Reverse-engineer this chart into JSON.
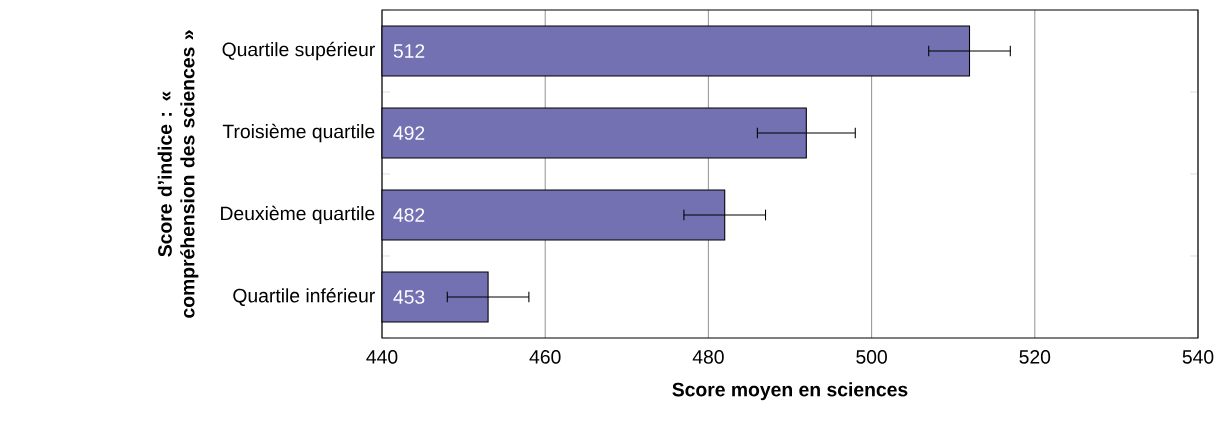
{
  "chart_data": {
    "type": "bar",
    "orientation": "horizontal",
    "xlabel": "Score moyen en sciences",
    "ylabel": "Score d’indice : « compréhension des sciences »",
    "categories": [
      "Quartile supérieur",
      "Troisième quartile",
      "Deuxième quartile",
      "Quartile inférieur"
    ],
    "values": [
      512,
      492,
      482,
      453
    ],
    "errors": [
      5,
      6,
      5,
      5
    ],
    "color": "#7471b3",
    "data_labels": true,
    "xlim": [
      440,
      540
    ],
    "xticks": [
      440,
      460,
      480,
      500,
      520,
      540
    ],
    "grid": "x"
  }
}
